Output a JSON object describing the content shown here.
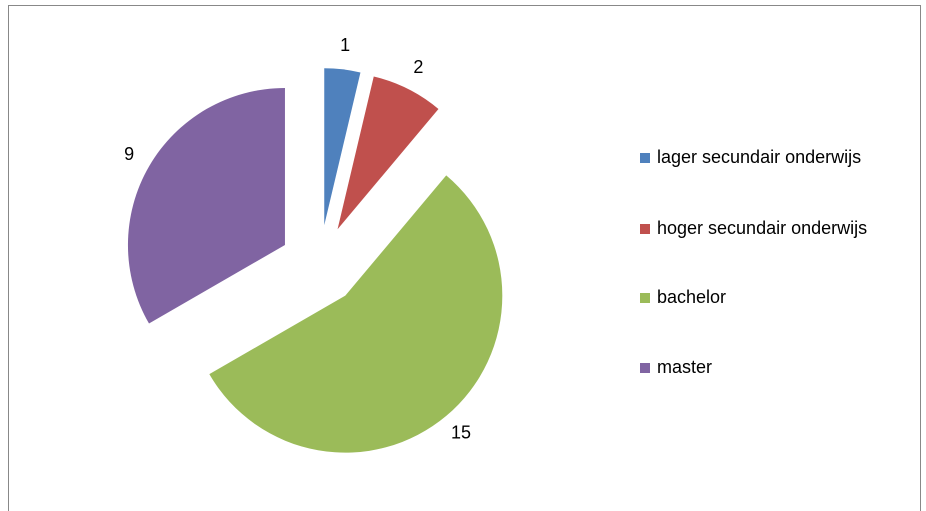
{
  "chart_data": {
    "type": "pie",
    "categories": [
      "lager secundair onderwijs",
      "hoger secundair onderwijs",
      "bachelor",
      "master"
    ],
    "values": [
      1,
      2,
      15,
      9
    ],
    "colors": [
      "#4f81bd",
      "#c0504d",
      "#9bbb59",
      "#8064a2"
    ],
    "exploded": true,
    "legend": "right"
  }
}
